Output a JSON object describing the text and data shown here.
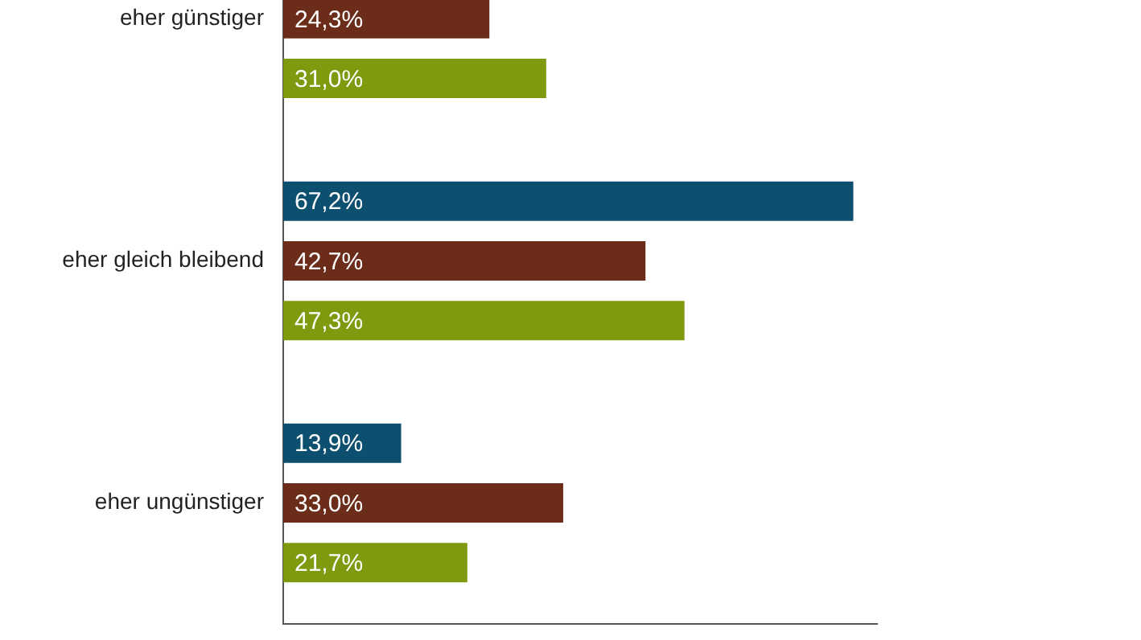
{
  "chart_data": {
    "type": "bar",
    "orientation": "horizontal",
    "categories": [
      "eher günstiger",
      "eher gleich bleibend",
      "eher ungünstiger"
    ],
    "series": [
      {
        "color": "#0d4f6e",
        "values": [
          null,
          67.2,
          13.9
        ],
        "value_labels": [
          null,
          "67,2%",
          "13,9%"
        ]
      },
      {
        "color": "#6b2d1a",
        "values": [
          24.3,
          42.7,
          33.0
        ],
        "value_labels": [
          "24,3%",
          "42,7%",
          "33,0%"
        ]
      },
      {
        "color": "#7f9a0e",
        "values": [
          31.0,
          47.3,
          21.7
        ],
        "value_labels": [
          "31,0%",
          "47,3%",
          "21,7%"
        ]
      }
    ],
    "tick_labels": "y"
  }
}
